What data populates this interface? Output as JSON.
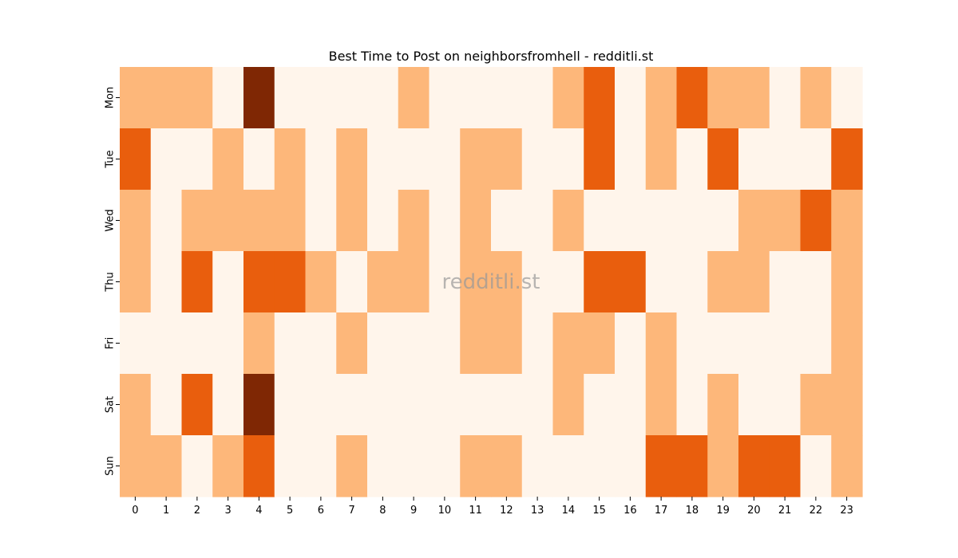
{
  "chart_data": {
    "type": "heatmap",
    "title": "Best Time to Post on neighborsfromhell - redditli.st",
    "watermark": "redditli.st",
    "x_labels": [
      "0",
      "1",
      "2",
      "3",
      "4",
      "5",
      "6",
      "7",
      "8",
      "9",
      "10",
      "11",
      "12",
      "13",
      "14",
      "15",
      "16",
      "17",
      "18",
      "19",
      "20",
      "21",
      "22",
      "23"
    ],
    "y_labels": [
      "Mon",
      "Tue",
      "Wed",
      "Thu",
      "Fri",
      "Sat",
      "Sun"
    ],
    "values": [
      [
        1,
        1,
        1,
        0,
        3,
        0,
        0,
        0,
        0,
        1,
        0,
        0,
        0,
        0,
        1,
        2,
        0,
        1,
        2,
        1,
        1,
        0,
        1,
        0
      ],
      [
        2,
        0,
        0,
        1,
        0,
        1,
        0,
        1,
        0,
        0,
        0,
        1,
        1,
        0,
        0,
        2,
        0,
        1,
        0,
        2,
        0,
        0,
        0,
        2
      ],
      [
        1,
        0,
        1,
        1,
        1,
        1,
        0,
        1,
        0,
        1,
        0,
        1,
        0,
        0,
        1,
        0,
        0,
        0,
        0,
        0,
        1,
        1,
        2,
        1
      ],
      [
        1,
        0,
        2,
        0,
        2,
        2,
        1,
        0,
        1,
        1,
        0,
        1,
        1,
        0,
        0,
        2,
        2,
        0,
        0,
        1,
        1,
        0,
        0,
        1
      ],
      [
        0,
        0,
        0,
        0,
        1,
        0,
        0,
        1,
        0,
        0,
        0,
        1,
        1,
        0,
        1,
        1,
        0,
        1,
        0,
        0,
        0,
        0,
        0,
        1
      ],
      [
        1,
        0,
        2,
        0,
        3,
        0,
        0,
        0,
        0,
        0,
        0,
        0,
        0,
        0,
        1,
        0,
        0,
        1,
        0,
        1,
        0,
        0,
        1,
        1
      ],
      [
        1,
        1,
        0,
        1,
        2,
        0,
        0,
        1,
        0,
        0,
        0,
        1,
        1,
        0,
        0,
        0,
        0,
        2,
        2,
        1,
        2,
        2,
        0,
        1
      ]
    ],
    "colors": [
      "#fff5eb",
      "#fdb77a",
      "#e95e0d",
      "#7f2704"
    ],
    "colorbar": false,
    "grid": false
  }
}
